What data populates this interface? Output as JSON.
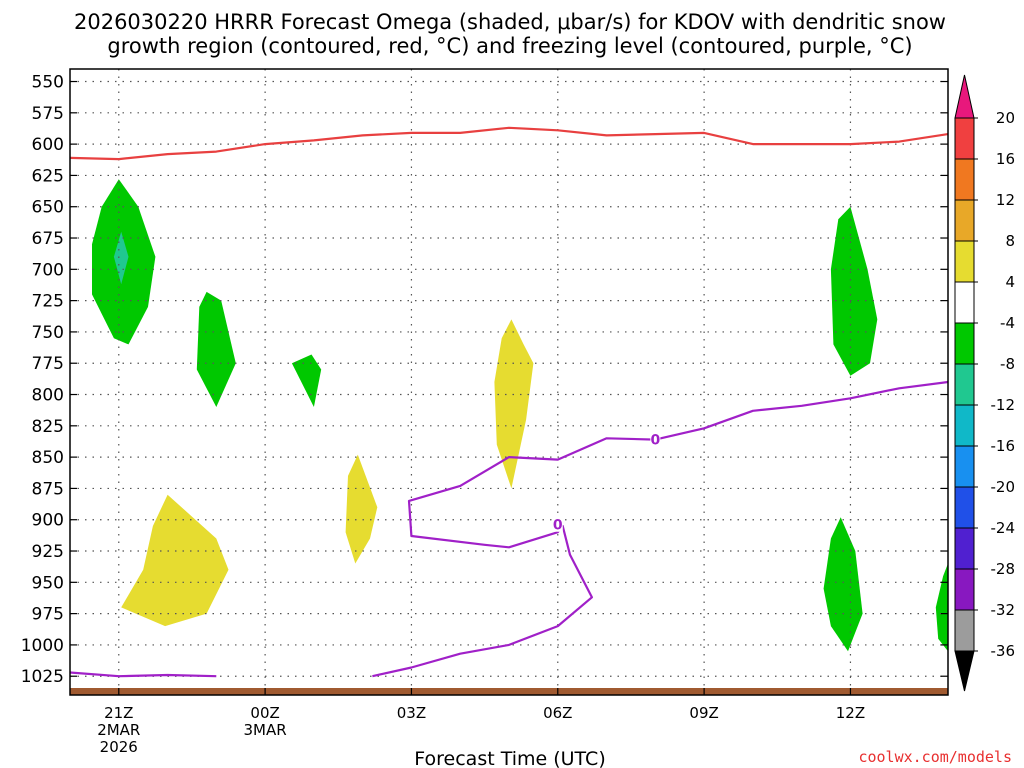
{
  "chart_data": {
    "type": "heatmap",
    "title_lines": [
      "2026030220 HRRR Forecast Omega (shaded, μbar/s) for KDOV with dendritic snow",
      "growth region (contoured, red, °C) and freezing level (contoured, purple, °C)"
    ],
    "xlabel": "Forecast Time (UTC)",
    "credit": "coolwx.com/models",
    "xlim": [
      -1,
      17
    ],
    "ylim": [
      540,
      1040
    ],
    "y_ticks": [
      550,
      575,
      600,
      625,
      650,
      675,
      700,
      725,
      750,
      775,
      800,
      825,
      850,
      875,
      900,
      925,
      950,
      975,
      1000,
      1025
    ],
    "x_ticks": [
      {
        "x": 0,
        "label": [
          "21Z",
          "2MAR",
          "2026"
        ]
      },
      {
        "x": 3,
        "label": [
          "00Z",
          "3MAR"
        ]
      },
      {
        "x": 6,
        "label": [
          "03Z"
        ]
      },
      {
        "x": 9,
        "label": [
          "06Z"
        ]
      },
      {
        "x": 12,
        "label": [
          "09Z"
        ]
      },
      {
        "x": 15,
        "label": [
          "12Z"
        ]
      }
    ],
    "grid": true,
    "colorbar": {
      "labels": [
        "20",
        "16",
        "12",
        "8",
        "4",
        "-4",
        "-8",
        "-12",
        "-16",
        "-20",
        "-24",
        "-28",
        "-32",
        "-36"
      ],
      "colors": [
        "#f04040",
        "#f07820",
        "#e8a828",
        "#e6dc30",
        "#ffffff",
        "#00c800",
        "#20c890",
        "#10b8c8",
        "#1890f0",
        "#2050e8",
        "#5020d0",
        "#8818c0",
        "#9c9c9c"
      ],
      "top_arrow_color": "#e8187c",
      "bottom_arrow_color": "#000000"
    },
    "shaded_regions": [
      {
        "name": "green-1",
        "color": "#00c800",
        "points": [
          [
            0,
            628
          ],
          [
            0.4,
            650
          ],
          [
            0.75,
            690
          ],
          [
            0.6,
            730
          ],
          [
            0.2,
            760
          ],
          [
            -0.1,
            755
          ],
          [
            -0.55,
            720
          ],
          [
            -0.55,
            680
          ],
          [
            -0.35,
            650
          ]
        ]
      },
      {
        "name": "teal-1",
        "color": "#20c890",
        "points": [
          [
            0.05,
            670
          ],
          [
            0.2,
            690
          ],
          [
            0.05,
            712
          ],
          [
            -0.1,
            690
          ]
        ]
      },
      {
        "name": "green-2",
        "color": "#00c800",
        "points": [
          [
            1.8,
            718
          ],
          [
            2.1,
            725
          ],
          [
            2.4,
            775
          ],
          [
            2.0,
            810
          ],
          [
            1.6,
            780
          ],
          [
            1.65,
            730
          ]
        ]
      },
      {
        "name": "green-3",
        "color": "#00c800",
        "points": [
          [
            3.95,
            768
          ],
          [
            4.15,
            780
          ],
          [
            4.0,
            810
          ],
          [
            3.55,
            775
          ]
        ]
      },
      {
        "name": "green-4",
        "color": "#00c800",
        "points": [
          [
            15.0,
            650
          ],
          [
            15.35,
            700
          ],
          [
            15.55,
            740
          ],
          [
            15.4,
            775
          ],
          [
            15.0,
            785
          ],
          [
            14.65,
            760
          ],
          [
            14.6,
            700
          ],
          [
            14.75,
            660
          ]
        ]
      },
      {
        "name": "green-5",
        "color": "#00c800",
        "points": [
          [
            14.8,
            898
          ],
          [
            15.1,
            925
          ],
          [
            15.25,
            975
          ],
          [
            14.95,
            1005
          ],
          [
            14.6,
            985
          ],
          [
            14.45,
            955
          ],
          [
            14.6,
            915
          ]
        ]
      },
      {
        "name": "green-6",
        "color": "#00c800",
        "points": [
          [
            17,
            935
          ],
          [
            17,
            1005
          ],
          [
            16.8,
            995
          ],
          [
            16.75,
            970
          ],
          [
            16.9,
            945
          ]
        ]
      },
      {
        "name": "yellow-1",
        "color": "#e6dc30",
        "points": [
          [
            8.05,
            740
          ],
          [
            8.3,
            760
          ],
          [
            8.5,
            775
          ],
          [
            8.35,
            820
          ],
          [
            8.05,
            875
          ],
          [
            7.75,
            840
          ],
          [
            7.7,
            790
          ],
          [
            7.85,
            755
          ]
        ]
      },
      {
        "name": "yellow-2",
        "color": "#e6dc30",
        "points": [
          [
            4.9,
            848
          ],
          [
            5.3,
            890
          ],
          [
            5.15,
            915
          ],
          [
            4.85,
            935
          ],
          [
            4.65,
            910
          ],
          [
            4.7,
            865
          ]
        ]
      },
      {
        "name": "yellow-3",
        "color": "#e6dc30",
        "points": [
          [
            1.0,
            880
          ],
          [
            2.0,
            915
          ],
          [
            2.25,
            940
          ],
          [
            1.8,
            975
          ],
          [
            0.95,
            985
          ],
          [
            0.05,
            970
          ],
          [
            0.5,
            940
          ],
          [
            0.7,
            905
          ]
        ]
      }
    ],
    "contours": [
      {
        "name": "dendritic-red",
        "color": "#e84040",
        "points": [
          [
            -1,
            611
          ],
          [
            0,
            612
          ],
          [
            1,
            608
          ],
          [
            2,
            606
          ],
          [
            3,
            600
          ],
          [
            4,
            597
          ],
          [
            5,
            593
          ],
          [
            6,
            591
          ],
          [
            7,
            591
          ],
          [
            8,
            587
          ],
          [
            9,
            589
          ],
          [
            10,
            593
          ],
          [
            11,
            592
          ],
          [
            12,
            591
          ],
          [
            13,
            600
          ],
          [
            14,
            600
          ],
          [
            15,
            600
          ],
          [
            16,
            598
          ],
          [
            17,
            592
          ]
        ]
      },
      {
        "name": "freezing-purple",
        "color": "#a020c8",
        "points": [
          [
            -1,
            1022
          ],
          [
            0,
            1025
          ],
          [
            1,
            1024
          ],
          [
            2,
            1025
          ]
        ]
      },
      {
        "name": "freezing-purple",
        "color": "#a020c8",
        "points": [
          [
            5.2,
            1025
          ],
          [
            6,
            1018
          ],
          [
            7,
            1007
          ],
          [
            8,
            1000
          ],
          [
            9,
            985
          ],
          [
            9.7,
            962
          ],
          [
            9.25,
            928
          ],
          [
            9.1,
            905
          ],
          [
            9,
            910
          ],
          [
            8.0,
            922
          ],
          [
            7.5,
            920
          ],
          [
            6.0,
            913
          ],
          [
            5.95,
            885
          ],
          [
            7,
            873
          ],
          [
            8,
            850
          ],
          [
            9,
            852
          ],
          [
            10,
            835
          ],
          [
            11,
            836
          ],
          [
            12,
            827
          ],
          [
            13,
            813
          ],
          [
            14,
            809
          ],
          [
            15,
            803
          ],
          [
            16,
            795
          ],
          [
            17,
            790
          ]
        ]
      }
    ],
    "contour_labels": [
      {
        "text": "0",
        "x": 11.0,
        "y": 836,
        "color": "#a020c8"
      },
      {
        "text": "0",
        "x": 9.0,
        "y": 904,
        "color": "#a020c8"
      }
    ],
    "ground_color": "#a05a30"
  }
}
